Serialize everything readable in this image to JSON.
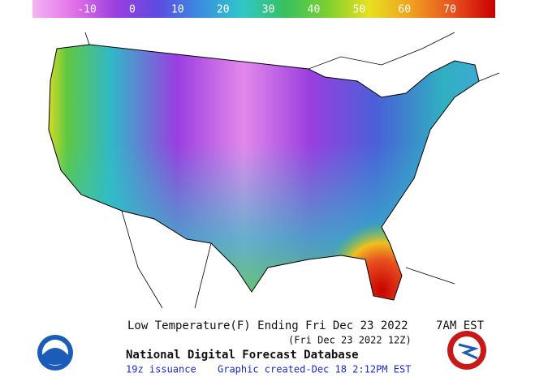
{
  "colorbar": {
    "ticks": [
      -10,
      0,
      10,
      20,
      30,
      40,
      50,
      60,
      70
    ],
    "range": [
      -22,
      80
    ],
    "colors": [
      "#f4b4f4",
      "#e070e8",
      "#9a3ee0",
      "#5c4ce0",
      "#3a8ee0",
      "#30c8c8",
      "#38c060",
      "#7ad030",
      "#e8e020",
      "#f0a020",
      "#e85020",
      "#c80000"
    ]
  },
  "caption": {
    "title": "Low Temperature(F) Ending Fri Dec 23 2022",
    "time": "7AM EST",
    "utc": "(Fri Dec 23 2022 12Z)",
    "database": "National Digital Forecast Database",
    "issuance": "19z issuance",
    "created": "Graphic created-Dec 18  2:12PM EST"
  }
}
